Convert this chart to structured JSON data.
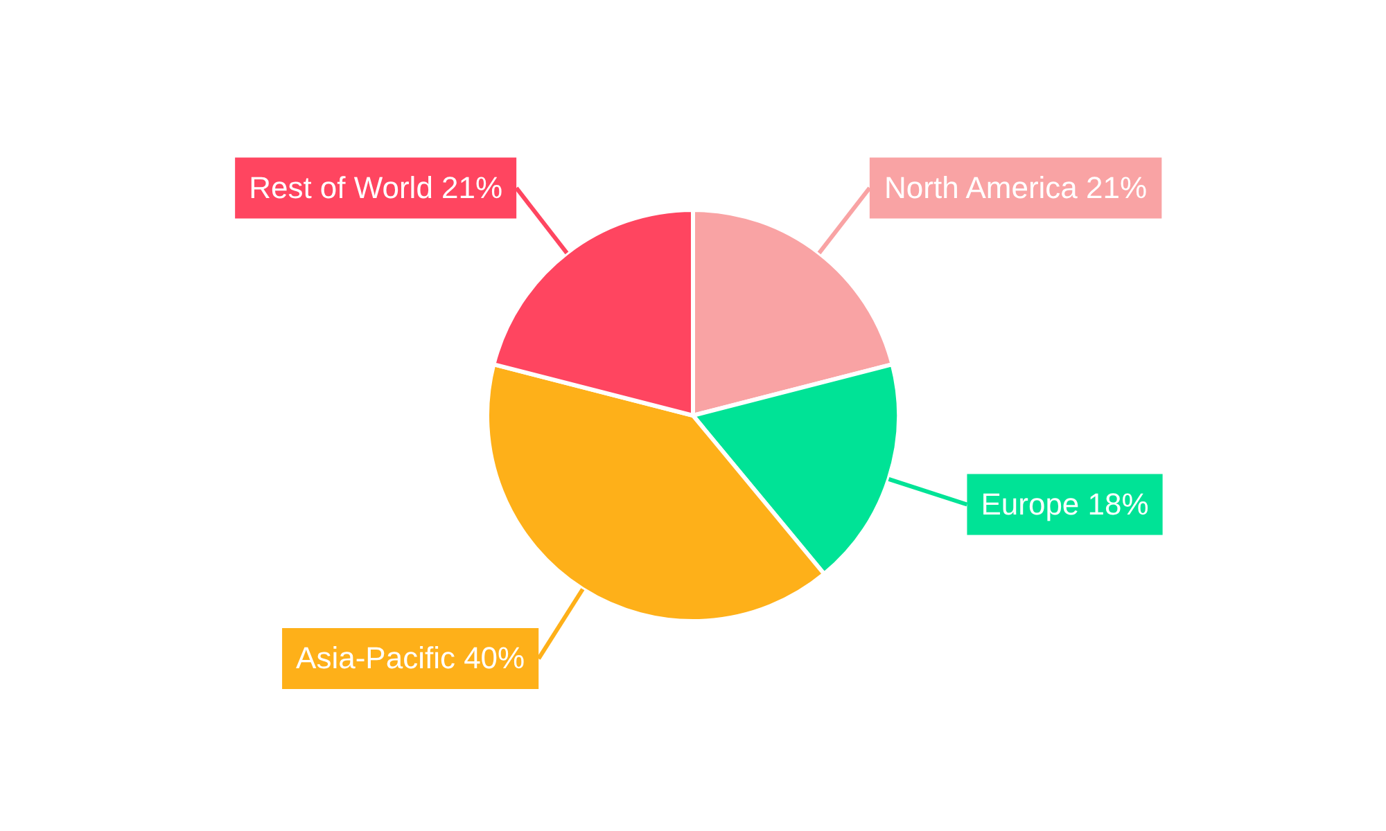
{
  "chart_data": {
    "type": "pie",
    "categories": [
      "North America",
      "Europe",
      "Asia-Pacific",
      "Rest of World"
    ],
    "values": [
      21,
      18,
      40,
      21
    ],
    "colors": [
      "#f9a3a4",
      "#00e396",
      "#feb019",
      "#ff4560"
    ],
    "value_labels": [
      "21%",
      "18%",
      "40%",
      "21%"
    ],
    "data_labels": true,
    "legend": false
  }
}
